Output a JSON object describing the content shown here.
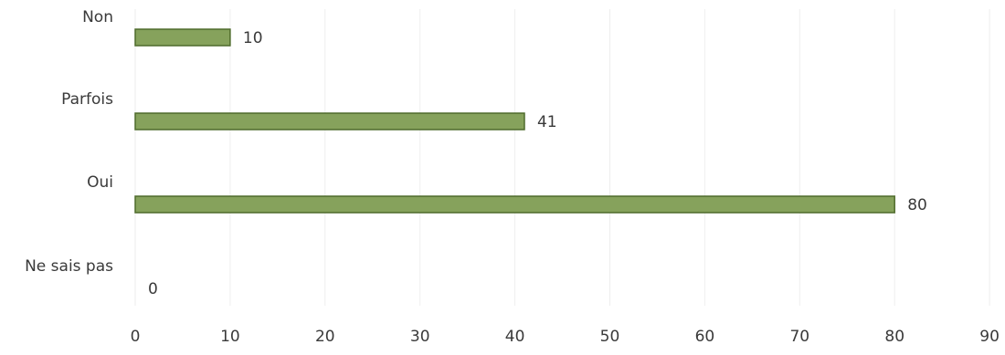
{
  "chart_data": {
    "type": "bar",
    "orientation": "horizontal",
    "categories": [
      "Non",
      "Parfois",
      "Oui",
      "Ne sais pas"
    ],
    "values": [
      10,
      41,
      80,
      0
    ],
    "data_labels": [
      "10",
      "41",
      "80",
      "0"
    ],
    "xlim": [
      0,
      90
    ],
    "x_ticks": [
      0,
      10,
      20,
      30,
      40,
      50,
      60,
      70,
      80,
      90
    ],
    "x_tick_labels": [
      "0",
      "10",
      "20",
      "30",
      "40",
      "50",
      "60",
      "70",
      "80",
      "90"
    ],
    "grid": true,
    "legend": "none",
    "colors": {
      "bar_fill": "#86a25c",
      "bar_edge": "#4f6b2c",
      "grid": "#eeeeee",
      "text": "#3a3a3a"
    }
  }
}
